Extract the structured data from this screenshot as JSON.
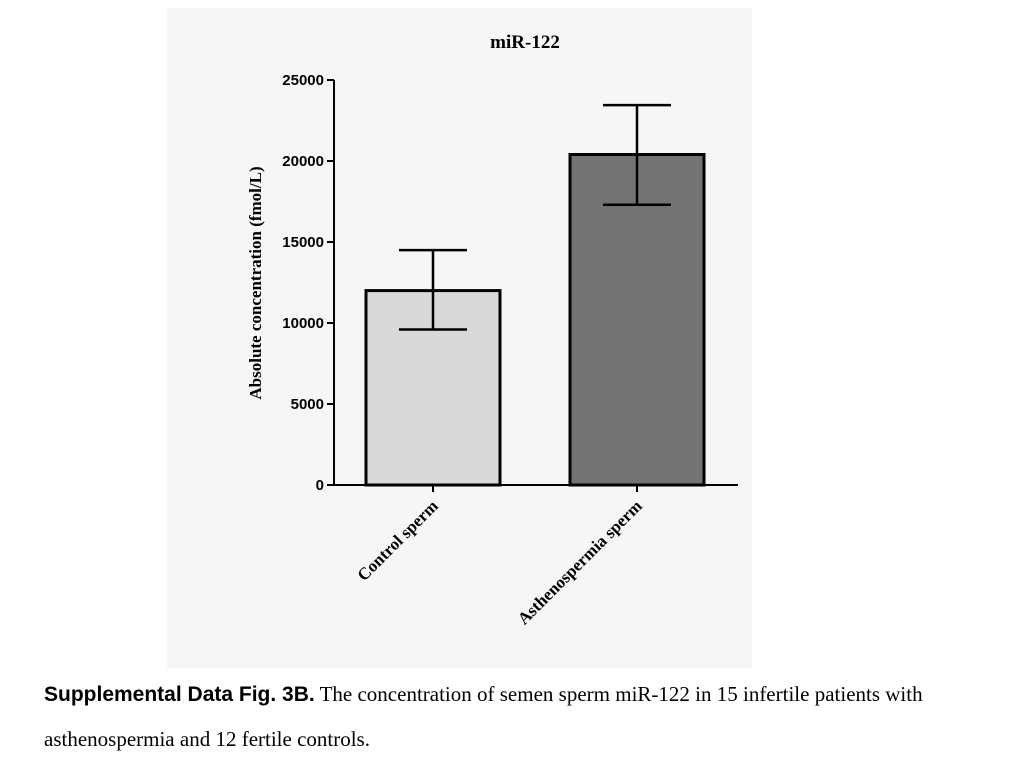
{
  "chart_data": {
    "type": "bar",
    "title": "miR-122",
    "xlabel": "",
    "ylabel": "Absolute  concentration (fmol/L)",
    "categories": [
      "Control sperm",
      "Asthenospermia sperm"
    ],
    "values": [
      12000,
      20400
    ],
    "error_bars": [
      {
        "low": 9600,
        "high": 14500
      },
      {
        "low": 17300,
        "high": 23450
      }
    ],
    "bar_colors": [
      "#d9d9d9",
      "#737373"
    ],
    "ylim": [
      0,
      25000
    ],
    "yticks": [
      0,
      5000,
      10000,
      15000,
      20000,
      25000
    ],
    "ytick_labels": [
      "0",
      "5000",
      "10000",
      "15000",
      "20000",
      "25000"
    ],
    "grid": false,
    "legend": "none"
  },
  "caption": {
    "label": "Supplemental Data Fig. 3B.",
    "text": " The concentration of semen sperm miR-122 in 15  infertile patients with asthenospermia and 12 fertile controls."
  }
}
